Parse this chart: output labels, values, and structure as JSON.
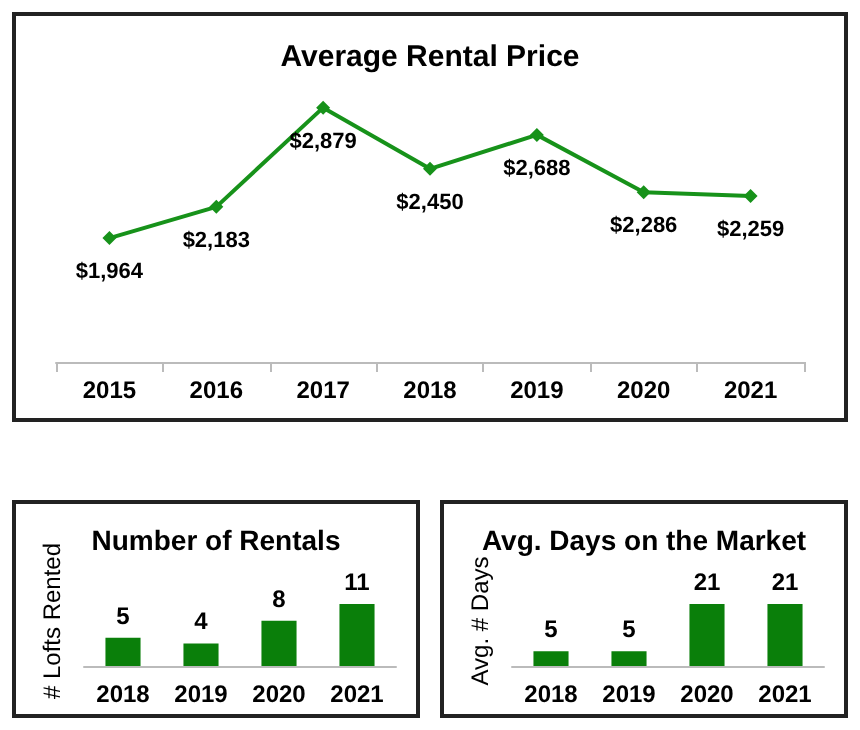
{
  "chart_data": [
    {
      "type": "line",
      "title": "Average Rental Price",
      "categories": [
        "2015",
        "2016",
        "2017",
        "2018",
        "2019",
        "2020",
        "2021"
      ],
      "series": [
        {
          "color": "#17921a",
          "values": [
            1964,
            2183,
            2879,
            2450,
            2688,
            2286,
            2259
          ],
          "value_labels": [
            "$1,964",
            "$2,183",
            "$2,879",
            "$2,450",
            "$2,688",
            "$2,286",
            "$2,259"
          ]
        }
      ],
      "marker": "diamond",
      "line_style": "solid",
      "grid": false
    },
    {
      "type": "bar",
      "title": "Number of Rentals",
      "ylabel": "# Lofts Rented",
      "categories": [
        "2018",
        "2019",
        "2020",
        "2021"
      ],
      "series": [
        {
          "color": "#0a7f0a",
          "values": [
            5,
            4,
            8,
            11
          ]
        }
      ],
      "data_labels": true,
      "grid": false
    },
    {
      "type": "bar",
      "title": "Avg. Days on the Market",
      "ylabel": "Avg. # Days",
      "categories": [
        "2018",
        "2019",
        "2020",
        "2021"
      ],
      "series": [
        {
          "color": "#0a7f0a",
          "values": [
            5,
            5,
            21,
            21
          ]
        }
      ],
      "data_labels": true,
      "grid": false
    }
  ]
}
